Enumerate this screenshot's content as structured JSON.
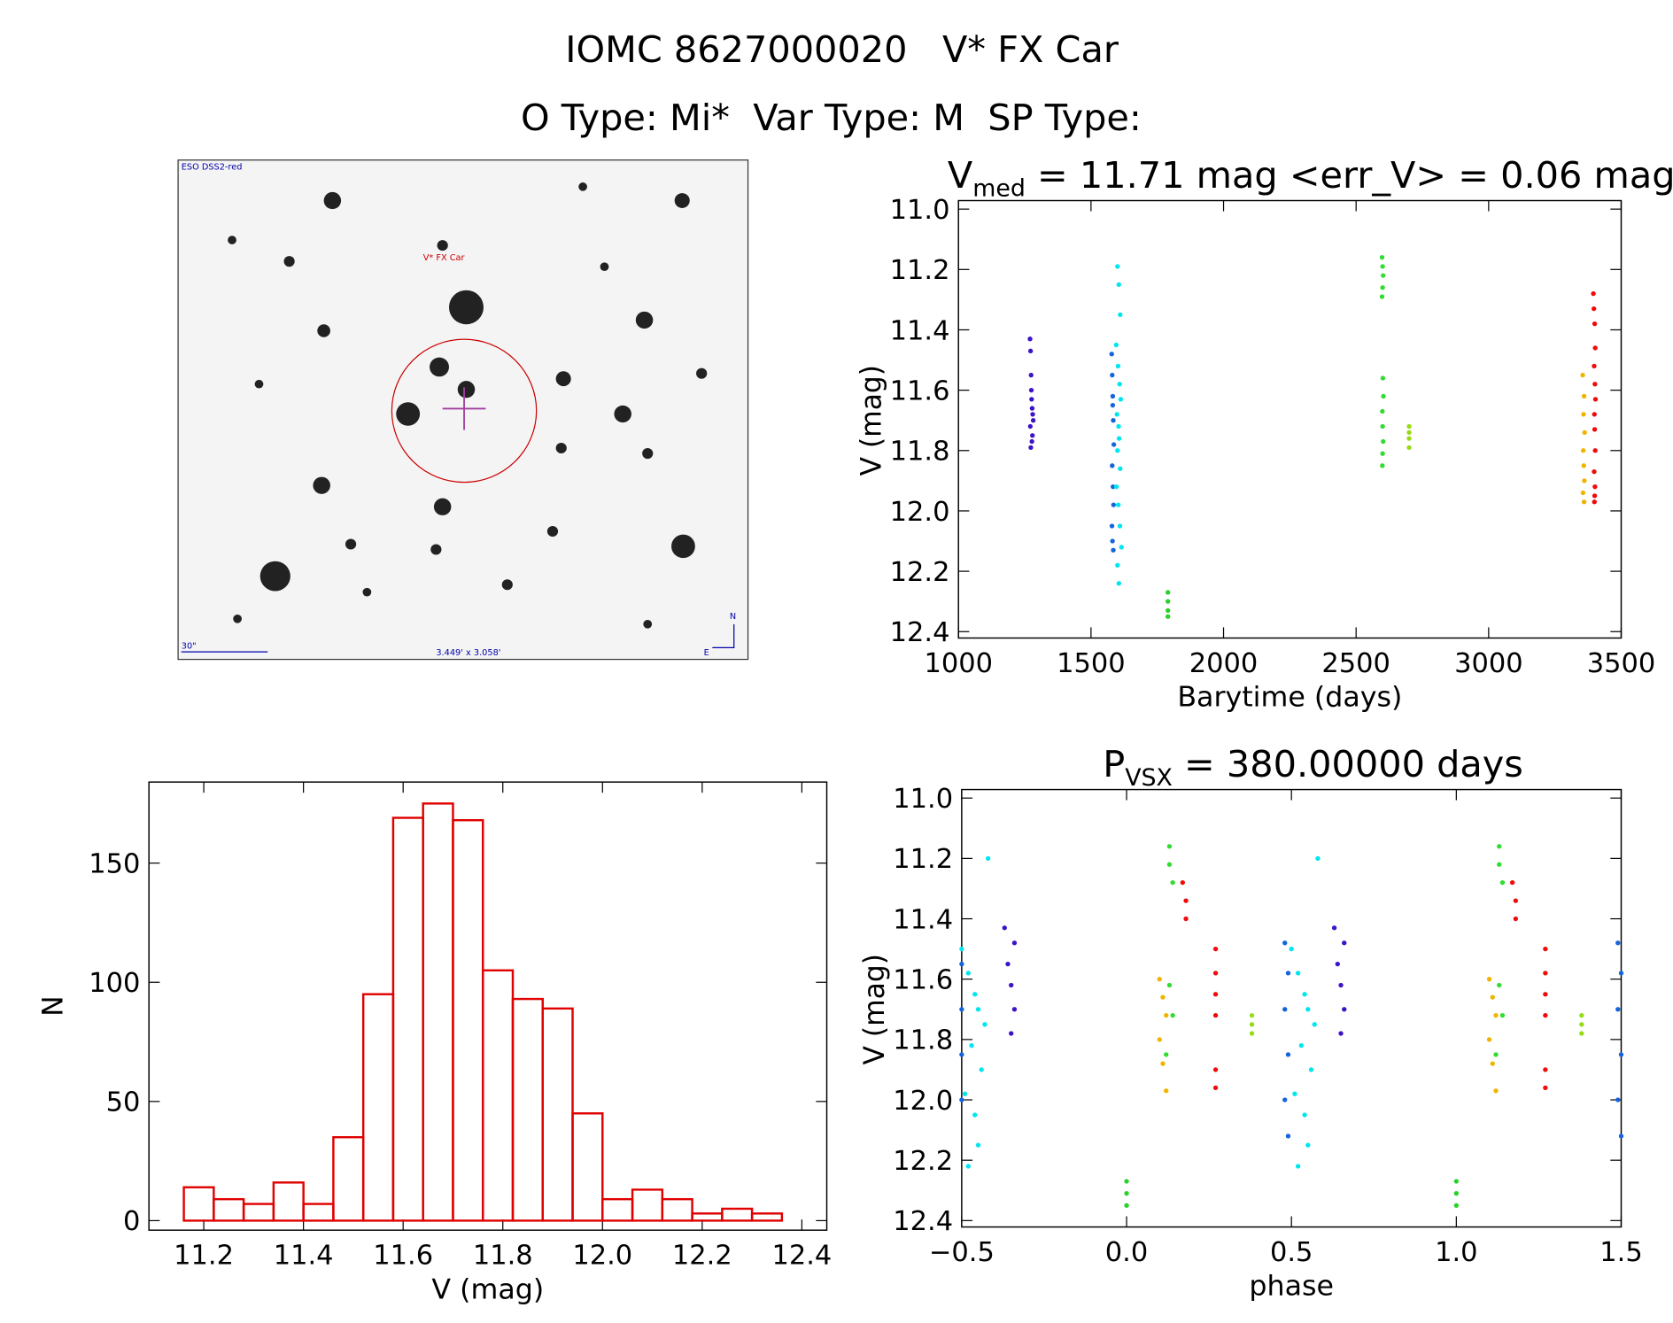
{
  "header": {
    "title": "IOMC 8627000020   V* FX Car",
    "subtitle": "O Type: Mi*  Var Type: M  SP Type:"
  },
  "image": {
    "survey": "ESO DSS2-red",
    "target": "V* FX Car",
    "scale": "30\"",
    "size": "3.449' x 3.058'",
    "north": "N",
    "east": "E"
  },
  "chart_data": [
    {
      "type": "scatter",
      "title_parts": [
        "V",
        "med",
        " = 11.71 mag <err_V> = 0.06 mag"
      ],
      "xlabel": "Barytime (days)",
      "ylabel": "V (mag)",
      "xlim": [
        1000,
        3500
      ],
      "xticks": [
        1000,
        1500,
        2000,
        2500,
        3000,
        3500
      ],
      "ylim": [
        11.0,
        12.4
      ],
      "y_inverted": true,
      "yticks": [
        {
          "value": 11,
          "label": "11.0"
        },
        11.2,
        11.4,
        11.6,
        11.8,
        {
          "value": 12,
          "label": "12.0"
        },
        12.2,
        12.4
      ],
      "series": [
        {
          "color": "#3c14c8",
          "x": [
            1270,
            1272,
            1274,
            1275,
            1276,
            1278,
            1280,
            1282,
            1271,
            1279,
            1277,
            1273
          ],
          "y": [
            11.43,
            11.47,
            11.55,
            11.6,
            11.63,
            11.66,
            11.68,
            11.7,
            11.72,
            11.75,
            11.77,
            11.79
          ]
        },
        {
          "color": "#1464dc",
          "x": [
            1578,
            1580,
            1582,
            1584,
            1586,
            1580,
            1583,
            1585,
            1579,
            1581,
            1584,
            1582
          ],
          "y": [
            11.48,
            11.55,
            11.62,
            11.7,
            11.78,
            11.85,
            11.92,
            11.98,
            12.05,
            12.1,
            12.13,
            11.65
          ]
        },
        {
          "color": "#00e6f0",
          "x": [
            1600,
            1605,
            1610,
            1595,
            1602,
            1608,
            1612,
            1598,
            1604,
            1606,
            1600,
            1610,
            1596,
            1603,
            1609,
            1615,
            1600,
            1605
          ],
          "y": [
            11.19,
            11.25,
            11.35,
            11.45,
            11.52,
            11.58,
            11.63,
            11.68,
            11.72,
            11.76,
            11.8,
            11.86,
            11.92,
            11.98,
            12.05,
            12.12,
            12.18,
            12.24
          ]
        },
        {
          "color": "#28d228",
          "x": [
            1790,
            1790,
            1790,
            1790
          ],
          "y": [
            12.27,
            12.3,
            12.33,
            12.35
          ]
        },
        {
          "color": "#32dc32",
          "x": [
            2598,
            2600,
            2602,
            2600,
            2598,
            2601,
            2603,
            2599,
            2600,
            2602,
            2600,
            2599
          ],
          "y": [
            11.16,
            11.19,
            11.22,
            11.26,
            11.29,
            11.56,
            11.62,
            11.67,
            11.72,
            11.77,
            11.81,
            11.85
          ]
        },
        {
          "color": "#96dc14",
          "x": [
            2700,
            2700,
            2700,
            2700
          ],
          "y": [
            11.72,
            11.74,
            11.76,
            11.79
          ]
        },
        {
          "color": "#f0b400",
          "x": [
            3355,
            3360,
            3358,
            3362,
            3357,
            3359,
            3361,
            3356,
            3360
          ],
          "y": [
            11.55,
            11.62,
            11.68,
            11.74,
            11.8,
            11.85,
            11.9,
            11.94,
            11.97
          ]
        },
        {
          "color": "#f00a0a",
          "x": [
            3395,
            3397,
            3400,
            3402,
            3398,
            3401,
            3403,
            3399,
            3400,
            3402,
            3398,
            3401,
            3400,
            3399
          ],
          "y": [
            11.28,
            11.33,
            11.38,
            11.46,
            11.52,
            11.58,
            11.63,
            11.68,
            11.73,
            11.8,
            11.87,
            11.92,
            11.95,
            11.97
          ]
        }
      ]
    },
    {
      "type": "histogram",
      "xlabel": "V (mag)",
      "ylabel": "N",
      "color": "#e00000",
      "bins": [
        11.16,
        11.22,
        11.28,
        11.34,
        11.4,
        11.46,
        11.52,
        11.58,
        11.64,
        11.7,
        11.76,
        11.82,
        11.88,
        11.94,
        12.0,
        12.06,
        12.12,
        12.18,
        12.24,
        12.3,
        12.36
      ],
      "counts": [
        14,
        9,
        7,
        16,
        7,
        35,
        95,
        169,
        175,
        168,
        105,
        93,
        89,
        45,
        9,
        13,
        9,
        3,
        5,
        3
      ],
      "xlim": [
        11.09,
        12.45
      ],
      "xticks": [
        11.2,
        11.4,
        11.6,
        11.8,
        {
          "value": 12,
          "label": "12.0"
        },
        12.2,
        12.4
      ],
      "ylim": [
        -4,
        184
      ],
      "yticks": [
        0,
        50,
        100,
        150
      ]
    },
    {
      "type": "scatter",
      "title_parts": [
        "P",
        "VSX",
        " = 380.00000 days"
      ],
      "xlabel": "phase",
      "ylabel": "V (mag)",
      "xlim": [
        -0.5,
        1.5
      ],
      "xticks": [
        {
          "value": -0.5,
          "label": "−0.5"
        },
        {
          "value": 0,
          "label": "0.0"
        },
        0.5,
        {
          "value": 1,
          "label": "1.0"
        },
        1.5
      ],
      "ylim": [
        11.0,
        12.4
      ],
      "y_inverted": true,
      "yticks": [
        {
          "value": 11,
          "label": "11.0"
        },
        11.2,
        11.4,
        11.6,
        11.8,
        {
          "value": 12,
          "label": "12.0"
        },
        12.2,
        12.4
      ],
      "series": [
        {
          "color": "#00e6f0",
          "x": [
            -0.5,
            -0.48,
            -0.46,
            -0.45,
            -0.43,
            -0.47,
            -0.44,
            -0.49,
            -0.46,
            -0.42,
            -0.45,
            -0.48,
            0.5,
            0.52,
            0.54,
            0.55,
            0.57,
            0.53,
            0.56,
            0.51,
            0.54,
            0.58,
            0.55,
            0.52
          ],
          "y": [
            11.5,
            11.58,
            11.65,
            11.7,
            11.75,
            11.82,
            11.9,
            11.98,
            12.05,
            11.2,
            12.15,
            12.22,
            11.5,
            11.58,
            11.65,
            11.7,
            11.75,
            11.82,
            11.9,
            11.98,
            12.05,
            11.2,
            12.15,
            12.22
          ]
        },
        {
          "color": "#1464dc",
          "x": [
            -0.5,
            -0.5,
            -0.5,
            -0.5,
            0.48,
            0.49,
            0.48,
            0.49,
            0.48,
            0.49,
            1.49,
            1.5,
            1.49,
            1.5,
            1.49,
            1.5
          ],
          "y": [
            11.55,
            11.7,
            11.85,
            12.0,
            11.48,
            11.58,
            11.7,
            11.85,
            12.0,
            12.12,
            11.48,
            11.58,
            11.7,
            11.85,
            12.0,
            12.12
          ]
        },
        {
          "color": "#3c14c8",
          "x": [
            -0.37,
            -0.36,
            -0.34,
            -0.35,
            -0.34,
            -0.35,
            0.63,
            0.64,
            0.66,
            0.65,
            0.66,
            0.65
          ],
          "y": [
            11.43,
            11.55,
            11.48,
            11.62,
            11.7,
            11.78,
            11.43,
            11.55,
            11.48,
            11.62,
            11.7,
            11.78
          ]
        },
        {
          "color": "#28d228",
          "x": [
            0,
            0,
            0,
            1,
            1,
            1
          ],
          "y": [
            12.27,
            12.31,
            12.35,
            12.27,
            12.31,
            12.35
          ]
        },
        {
          "color": "#32dc32",
          "x": [
            0.13,
            0.13,
            0.14,
            0.13,
            0.14,
            0.12,
            1.13,
            1.13,
            1.14,
            1.13,
            1.14,
            1.12
          ],
          "y": [
            11.16,
            11.22,
            11.28,
            11.62,
            11.72,
            11.85,
            11.16,
            11.22,
            11.28,
            11.62,
            11.72,
            11.85
          ]
        },
        {
          "color": "#96dc14",
          "x": [
            0.38,
            0.38,
            0.38,
            1.38,
            1.38,
            1.38
          ],
          "y": [
            11.72,
            11.75,
            11.78,
            11.72,
            11.75,
            11.78
          ]
        },
        {
          "color": "#f0b400",
          "x": [
            0.1,
            0.11,
            0.12,
            0.1,
            0.11,
            0.12,
            1.1,
            1.11,
            1.12,
            1.1,
            1.11,
            1.12
          ],
          "y": [
            11.6,
            11.66,
            11.72,
            11.8,
            11.88,
            11.97,
            11.6,
            11.66,
            11.72,
            11.8,
            11.88,
            11.97
          ]
        },
        {
          "color": "#f00a0a",
          "x": [
            0.17,
            0.18,
            0.18,
            0.27,
            0.27,
            0.27,
            0.27,
            0.27,
            0.27,
            1.17,
            1.18,
            1.18,
            1.27,
            1.27,
            1.27,
            1.27,
            1.27,
            1.27
          ],
          "y": [
            11.28,
            11.34,
            11.4,
            11.5,
            11.58,
            11.65,
            11.72,
            11.9,
            11.96,
            11.28,
            11.34,
            11.4,
            11.5,
            11.58,
            11.65,
            11.72,
            11.9,
            11.96
          ]
        }
      ]
    }
  ]
}
